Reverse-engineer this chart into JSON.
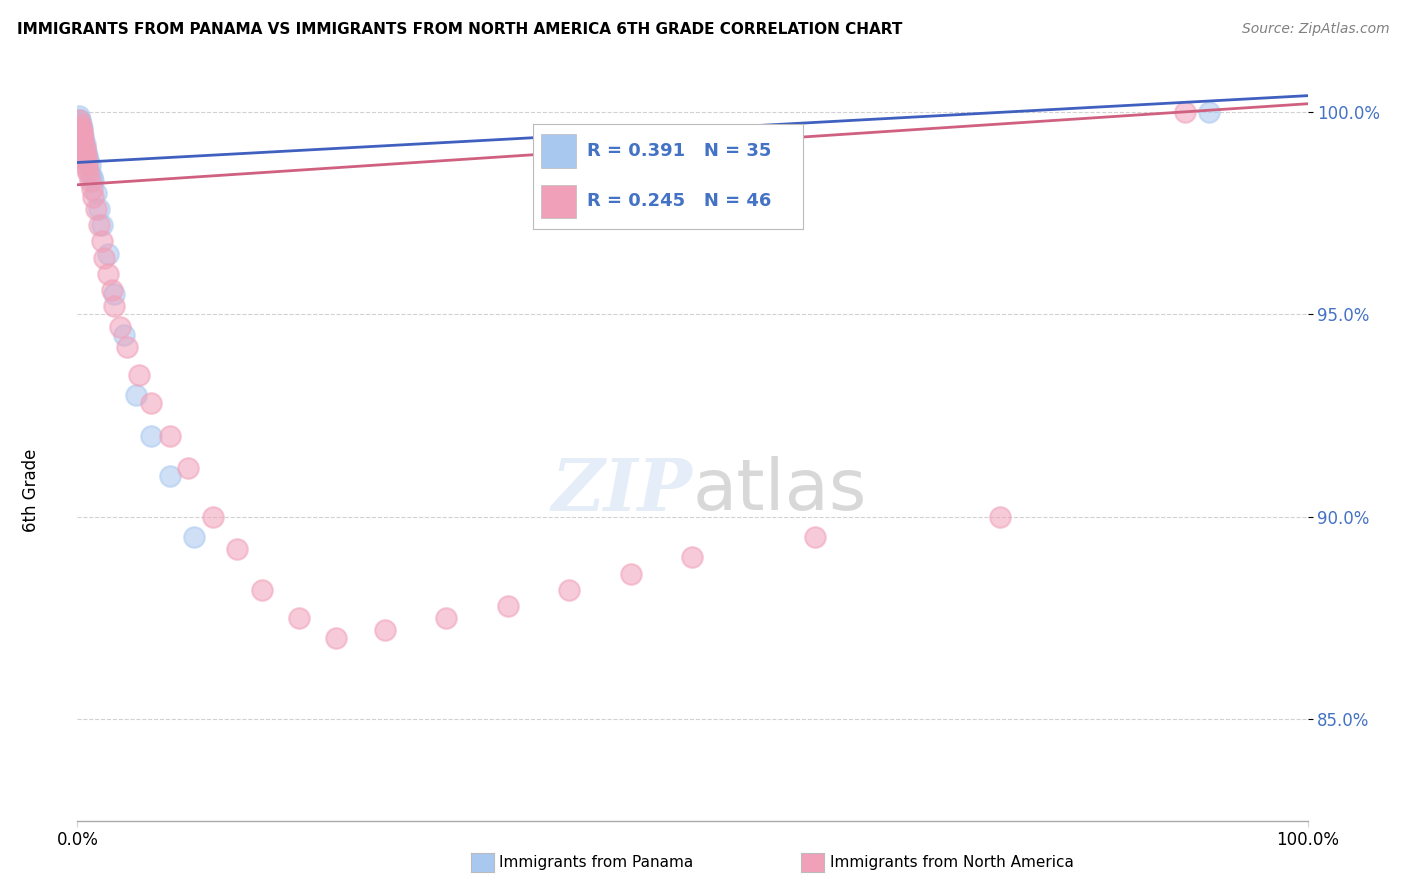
{
  "title": "IMMIGRANTS FROM PANAMA VS IMMIGRANTS FROM NORTH AMERICA 6TH GRADE CORRELATION CHART",
  "source": "Source: ZipAtlas.com",
  "ylabel": "6th Grade",
  "legend_label1": "Immigrants from Panama",
  "legend_label2": "Immigrants from North America",
  "R1": 0.391,
  "N1": 35,
  "R2": 0.245,
  "N2": 46,
  "color1": "#A8C8F0",
  "color2": "#F0A0B8",
  "trendline1_color": "#4060C0",
  "trendline2_color": "#D06080",
  "xlim": [
    0.0,
    1.0
  ],
  "ylim": [
    0.825,
    1.01
  ],
  "yticks": [
    0.85,
    0.9,
    0.95,
    1.0
  ],
  "ytick_labels": [
    "85.0%",
    "90.0%",
    "95.0%",
    "100.0%"
  ],
  "xtick_labels": [
    "0.0%",
    "100.0%"
  ],
  "xticks": [
    0.0,
    1.0
  ],
  "blue_x": [
    0.001,
    0.001,
    0.002,
    0.002,
    0.002,
    0.003,
    0.003,
    0.003,
    0.004,
    0.004,
    0.005,
    0.005,
    0.005,
    0.006,
    0.006,
    0.007,
    0.007,
    0.008,
    0.008,
    0.009,
    0.01,
    0.01,
    0.012,
    0.013,
    0.015,
    0.018,
    0.02,
    0.025,
    0.03,
    0.038,
    0.048,
    0.06,
    0.075,
    0.095,
    0.92
  ],
  "blue_y": [
    0.999,
    0.998,
    0.998,
    0.997,
    0.996,
    0.997,
    0.996,
    0.995,
    0.996,
    0.995,
    0.994,
    0.993,
    0.992,
    0.992,
    0.991,
    0.99,
    0.989,
    0.989,
    0.988,
    0.988,
    0.987,
    0.985,
    0.984,
    0.983,
    0.98,
    0.976,
    0.972,
    0.965,
    0.955,
    0.945,
    0.93,
    0.92,
    0.91,
    0.895,
    1.0
  ],
  "pink_x": [
    0.001,
    0.002,
    0.002,
    0.003,
    0.003,
    0.004,
    0.004,
    0.005,
    0.005,
    0.006,
    0.006,
    0.007,
    0.007,
    0.008,
    0.008,
    0.009,
    0.01,
    0.012,
    0.013,
    0.015,
    0.018,
    0.02,
    0.022,
    0.025,
    0.028,
    0.03,
    0.035,
    0.04,
    0.05,
    0.06,
    0.075,
    0.09,
    0.11,
    0.13,
    0.15,
    0.18,
    0.21,
    0.25,
    0.3,
    0.35,
    0.4,
    0.45,
    0.5,
    0.6,
    0.75,
    0.9
  ],
  "pink_y": [
    0.998,
    0.997,
    0.996,
    0.996,
    0.995,
    0.995,
    0.994,
    0.993,
    0.992,
    0.991,
    0.99,
    0.989,
    0.988,
    0.987,
    0.986,
    0.985,
    0.983,
    0.981,
    0.979,
    0.976,
    0.972,
    0.968,
    0.964,
    0.96,
    0.956,
    0.952,
    0.947,
    0.942,
    0.935,
    0.928,
    0.92,
    0.912,
    0.9,
    0.892,
    0.882,
    0.875,
    0.87,
    0.872,
    0.875,
    0.878,
    0.882,
    0.886,
    0.89,
    0.895,
    0.9,
    1.0
  ],
  "trendline1_x0": 0.0,
  "trendline1_y0": 0.9875,
  "trendline1_x1": 1.0,
  "trendline1_y1": 1.004,
  "trendline2_x0": 0.0,
  "trendline2_y0": 0.982,
  "trendline2_x1": 1.0,
  "trendline2_y1": 1.002
}
